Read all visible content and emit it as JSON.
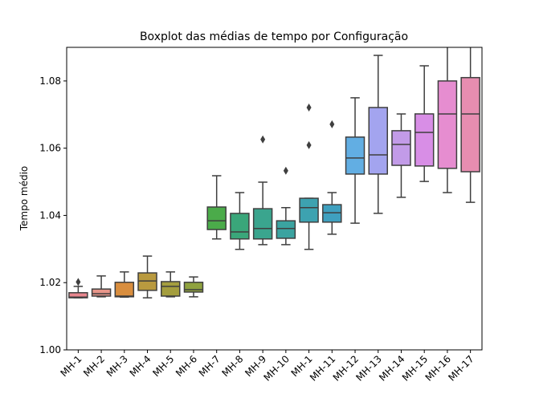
{
  "chart_data": {
    "type": "box",
    "title": "Boxplot das médias de tempo por Configuração",
    "y_label": "Tempo médio",
    "categories": [
      "MH-1",
      "MH-2",
      "MH-3",
      "MH-4",
      "MH-5",
      "MH-6",
      "MH-7",
      "MH-8",
      "MH-9",
      "MH-10",
      "MH-1",
      "MH-11",
      "MH-12",
      "MH-13",
      "MH-14",
      "MH-15",
      "MH-16",
      "MH-17"
    ],
    "colors": [
      "#e8868e",
      "#e8968a",
      "#d98e3e",
      "#b99a3f",
      "#a49e3e",
      "#8fa23e",
      "#4bab4a",
      "#3aa67a",
      "#3aa58e",
      "#3ba3a0",
      "#3da2b0",
      "#3fa0bf",
      "#62aee3",
      "#a3a4ef",
      "#c29be8",
      "#d88ee6",
      "#e68dd0",
      "#e78db0"
    ],
    "boxes": [
      {
        "low": 1.0155,
        "q1": 1.0155,
        "median": 1.0157,
        "q3": 1.017,
        "high": 1.0189,
        "outliers": [
          1.0202
        ]
      },
      {
        "low": 1.0158,
        "q1": 1.016,
        "median": 1.0167,
        "q3": 1.0181,
        "high": 1.022
      },
      {
        "low": 1.0157,
        "q1": 1.0158,
        "median": 1.016,
        "q3": 1.0201,
        "high": 1.0232
      },
      {
        "low": 1.0155,
        "q1": 1.0177,
        "median": 1.0205,
        "q3": 1.0229,
        "high": 1.0279
      },
      {
        "low": 1.0158,
        "q1": 1.016,
        "median": 1.0189,
        "q3": 1.0203,
        "high": 1.0232
      },
      {
        "low": 1.0158,
        "q1": 1.0172,
        "median": 1.0179,
        "q3": 1.0201,
        "high": 1.0217
      },
      {
        "low": 1.033,
        "q1": 1.0358,
        "median": 1.0384,
        "q3": 1.0425,
        "high": 1.0518
      },
      {
        "low": 1.0299,
        "q1": 1.033,
        "median": 1.0351,
        "q3": 1.0406,
        "high": 1.0468
      },
      {
        "low": 1.0313,
        "q1": 1.033,
        "median": 1.0361,
        "q3": 1.042,
        "high": 1.0499,
        "outliers": [
          1.0626
        ]
      },
      {
        "low": 1.0313,
        "q1": 1.0332,
        "median": 1.0361,
        "q3": 1.0384,
        "high": 1.0423,
        "outliers": [
          1.0533
        ]
      },
      {
        "low": 1.0299,
        "q1": 1.038,
        "median": 1.0423,
        "q3": 1.0451,
        "high": 1.0451,
        "outliers": [
          1.0721,
          1.0609
        ]
      },
      {
        "low": 1.0344,
        "q1": 1.038,
        "median": 1.0408,
        "q3": 1.0432,
        "high": 1.0468,
        "outliers": [
          1.0671
        ]
      },
      {
        "low": 1.0377,
        "q1": 1.0523,
        "median": 1.0571,
        "q3": 1.0633,
        "high": 1.075
      },
      {
        "low": 1.0406,
        "q1": 1.0523,
        "median": 1.058,
        "q3": 1.0721,
        "high": 1.0876
      },
      {
        "low": 1.0454,
        "q1": 1.0549,
        "median": 1.0611,
        "q3": 1.0652,
        "high": 1.0702
      },
      {
        "low": 1.0501,
        "q1": 1.0547,
        "median": 1.0647,
        "q3": 1.0702,
        "high": 1.0845
      },
      {
        "low": 1.0468,
        "q1": 1.054,
        "median": 1.0702,
        "q3": 1.08,
        "high": 1.095
      },
      {
        "low": 1.0439,
        "q1": 1.053,
        "median": 1.0702,
        "q3": 1.081,
        "high": 1.095
      }
    ],
    "ylim": [
      1.0,
      1.09
    ],
    "yticks": [
      {
        "value": 1.0,
        "label": "1.00"
      },
      {
        "value": 1.02,
        "label": "1.02"
      },
      {
        "value": 1.04,
        "label": "1.04"
      },
      {
        "value": 1.06,
        "label": "1.06"
      },
      {
        "value": 1.08,
        "label": "1.08"
      }
    ]
  }
}
